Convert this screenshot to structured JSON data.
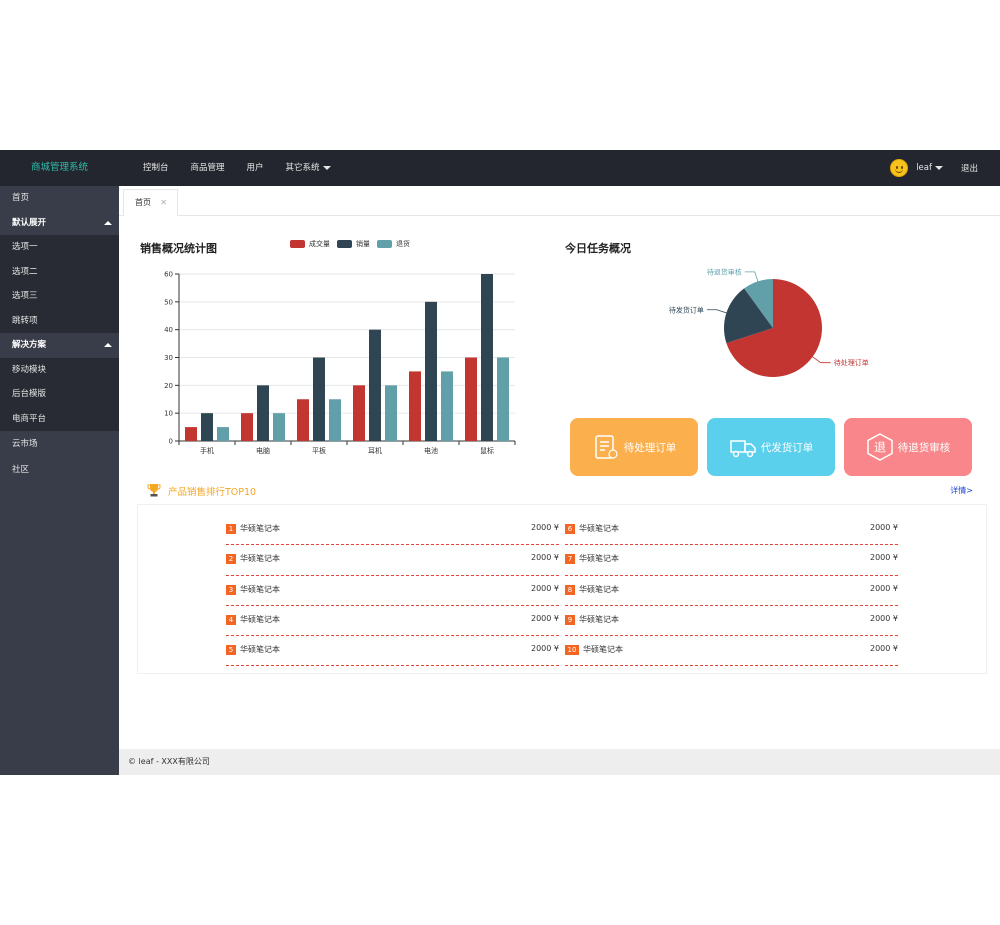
{
  "header": {
    "app_title": "商城管理系统",
    "nav": [
      "控制台",
      "商品管理",
      "用户",
      "其它系统"
    ],
    "user_name": "leaf",
    "logout": "退出"
  },
  "sidebar": {
    "home": "首页",
    "group1": "默认展开",
    "group1_items": [
      "选项一",
      "选项二",
      "选项三",
      "跳转项"
    ],
    "group2": "解决方案",
    "group2_items": [
      "移动模块",
      "后台模版",
      "电商平台"
    ],
    "market": "云市场",
    "community": "社区"
  },
  "tabs": {
    "home": "首页",
    "close": "✕"
  },
  "chart_data": [
    {
      "type": "bar",
      "title": "销售概况统计图",
      "categories": [
        "手机",
        "电脑",
        "平板",
        "耳机",
        "电池",
        "鼠标"
      ],
      "series": [
        {
          "name": "成交量",
          "color": "#c23531",
          "values": [
            5,
            10,
            15,
            20,
            25,
            30
          ]
        },
        {
          "name": "销量",
          "color": "#2f4554",
          "values": [
            10,
            20,
            30,
            40,
            50,
            60
          ]
        },
        {
          "name": "退货",
          "color": "#61a0a8",
          "values": [
            5,
            10,
            15,
            20,
            25,
            30
          ]
        }
      ],
      "yticks": [
        "0",
        "10",
        "20",
        "30",
        "40",
        "50",
        "60"
      ],
      "ylim": [
        0,
        60
      ],
      "legend": "top"
    },
    {
      "type": "pie",
      "title": "今日任务概况",
      "slices": [
        {
          "name": "待处理订单",
          "color": "#c23531",
          "value": 70
        },
        {
          "name": "待发货订单",
          "color": "#2f4554",
          "value": 20
        },
        {
          "name": "待退货审核",
          "color": "#61a0a8",
          "value": 10
        }
      ]
    }
  ],
  "cards": [
    {
      "label": "待处理订单",
      "color": "#fbb04d",
      "icon": "list-doc-icon"
    },
    {
      "label": "代发货订单",
      "color": "#5ad0ec",
      "icon": "truck-icon"
    },
    {
      "label": "待退货审核",
      "color": "#f8868a",
      "icon": "return-icon",
      "glyph": "退"
    }
  ],
  "top10": {
    "title": "产品销售排行TOP10",
    "more": "详情>",
    "items": [
      {
        "rank": "1",
        "name": "华硕笔记本",
        "price": "2000 ¥"
      },
      {
        "rank": "2",
        "name": "华硕笔记本",
        "price": "2000 ¥"
      },
      {
        "rank": "3",
        "name": "华硕笔记本",
        "price": "2000 ¥"
      },
      {
        "rank": "4",
        "name": "华硕笔记本",
        "price": "2000 ¥"
      },
      {
        "rank": "5",
        "name": "华硕笔记本",
        "price": "2000 ¥"
      },
      {
        "rank": "6",
        "name": "华硕笔记本",
        "price": "2000 ¥"
      },
      {
        "rank": "7",
        "name": "华硕笔记本",
        "price": "2000 ¥"
      },
      {
        "rank": "8",
        "name": "华硕笔记本",
        "price": "2000 ¥"
      },
      {
        "rank": "9",
        "name": "华硕笔记本",
        "price": "2000 ¥"
      },
      {
        "rank": "10",
        "name": "华硕笔记本",
        "price": "2000 ¥"
      }
    ]
  },
  "footer": {
    "text": "© leaf - XXX有限公司"
  }
}
